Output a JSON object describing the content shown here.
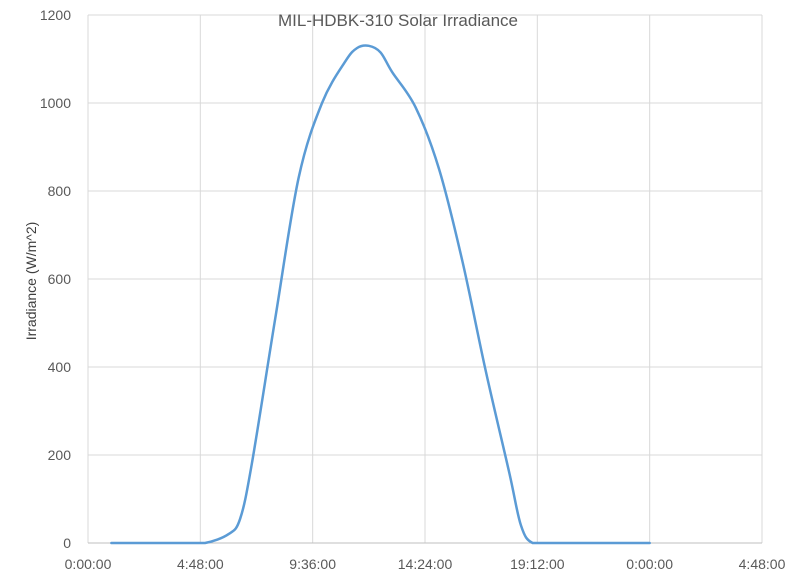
{
  "chart_data": {
    "type": "line",
    "title": "MIL-HDBK-310 Solar Irradiance",
    "xlabel": "",
    "ylabel": "Irradiance (W/m^2)",
    "ylim": [
      0,
      1200
    ],
    "y_ticks": [
      0,
      200,
      400,
      600,
      800,
      1000,
      1200
    ],
    "x_tick_labels": [
      "0:00:00",
      "4:48:00",
      "9:36:00",
      "14:24:00",
      "19:12:00",
      "0:00:00",
      "4:48:00"
    ],
    "grid": {
      "horizontal": true,
      "vertical": true
    },
    "legend": "none",
    "series_color": "#5B9BD5",
    "series": [
      {
        "x": [
          "1:00",
          "2:00",
          "3:00",
          "4:00",
          "5:00",
          "6:00",
          "6:30",
          "7:00",
          "8:00",
          "9:00",
          "10:00",
          "11:00",
          "11:30",
          "12:00",
          "12:30",
          "13:00",
          "14:00",
          "15:00",
          "16:00",
          "17:00",
          "18:00",
          "18:30",
          "19:00",
          "20:00",
          "21:00",
          "22:00",
          "23:00",
          "24:00"
        ],
        "y": [
          0,
          0,
          0,
          0,
          0,
          20,
          55,
          180,
          510,
          830,
          1000,
          1095,
          1125,
          1130,
          1115,
          1070,
          990,
          850,
          640,
          390,
          160,
          40,
          0,
          0,
          0,
          0,
          0,
          0
        ]
      }
    ]
  }
}
